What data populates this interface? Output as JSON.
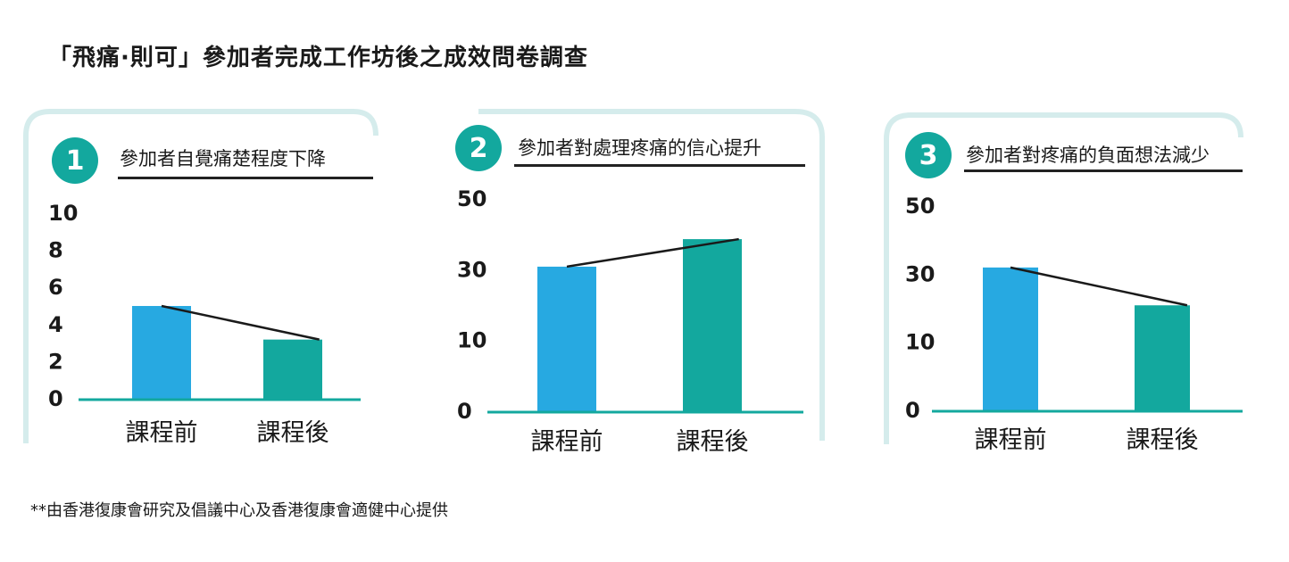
{
  "title": "「飛痛·則可」參加者完成工作坊後之成效問卷調查",
  "source": "**由香港復康會研究及倡議中心及香港復康會適健中心提供",
  "colors": {
    "before": "#27a9e1",
    "after": "#13a89e",
    "frame": "#d5ecec",
    "badge": "#13a89e",
    "axis": "#13a89e",
    "trend": "#1a1a1a"
  },
  "panels": [
    {
      "number": "1",
      "title": "參加者自覺痛楚程度下降"
    },
    {
      "number": "2",
      "title": "參加者對處理疼痛的信心提升"
    },
    {
      "number": "3",
      "title": "參加者對疼痛的負面想法減少"
    }
  ],
  "chart_data": [
    {
      "type": "bar",
      "title": "參加者自覺痛楚程度下降",
      "categories": [
        "課程前",
        "課程後"
      ],
      "values": [
        5.3,
        3.4
      ],
      "yticks": [
        "10",
        "8",
        "6",
        "4",
        "2",
        "0"
      ],
      "ylim": [
        0,
        10.5
      ],
      "grid": false,
      "trend_line": true
    },
    {
      "type": "bar",
      "title": "參加者對處理疼痛的信心提升",
      "categories": [
        "課程前",
        "課程後"
      ],
      "values": [
        37,
        44
      ],
      "yticks": [
        "50",
        "30",
        "10",
        "0"
      ],
      "ylim": [
        0,
        54
      ],
      "grid": false,
      "trend_line": true
    },
    {
      "type": "bar",
      "title": "參加者對疼痛的負面想法減少",
      "categories": [
        "課程前",
        "課程後"
      ],
      "values": [
        38,
        28
      ],
      "yticks": [
        "50",
        "30",
        "10",
        "0"
      ],
      "ylim": [
        0,
        54
      ],
      "grid": false,
      "trend_line": true
    }
  ]
}
